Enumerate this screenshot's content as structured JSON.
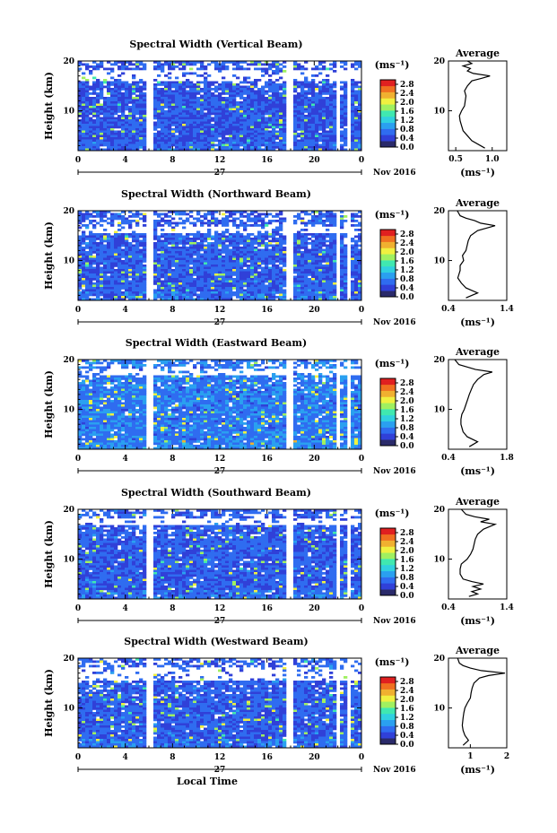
{
  "chart_data": {
    "type": "heatmap",
    "xlabel": "Local Time",
    "x_ticks": [
      "0",
      "4",
      "8",
      "12",
      "16",
      "20",
      "0"
    ],
    "date_day": "27",
    "date_month_year": "Nov 2016",
    "xlim": [
      0,
      24
    ],
    "ylabel": "Height (km)",
    "y_ticks": [
      "10",
      "20"
    ],
    "ylim": [
      2,
      20
    ],
    "colorbar_unit": "(ms⁻¹)",
    "colorbar_ticks": [
      "0.0",
      "0.4",
      "0.8",
      "1.2",
      "1.6",
      "2.0",
      "2.4",
      "2.8"
    ],
    "colorbar_range": [
      0,
      3.0
    ],
    "colors": [
      "#2a2a6a",
      "#3040d8",
      "#2f6cf0",
      "#2aa0f0",
      "#30d0e0",
      "#40e8b0",
      "#a0f060",
      "#f0f040",
      "#f0b030",
      "#f07020",
      "#e02020"
    ],
    "data_gaps_hours": [
      [
        5.8,
        6.3
      ],
      [
        17.6,
        18.2
      ],
      [
        21.9,
        22.2
      ],
      [
        22.7,
        23.1
      ]
    ],
    "average_title": "Average",
    "average_xlabel": "(ms⁻¹)",
    "panels": [
      {
        "title": "Spectral Width (Vertical Beam)",
        "top_gap_km": [
          16,
          18
        ],
        "mean_level": 0.55,
        "average": {
          "x_ticks": [
            "0.5",
            "1.0"
          ],
          "xlim": [
            0.4,
            1.2
          ],
          "height_km": [
            2.5,
            4,
            5,
            6,
            7,
            8,
            9,
            10,
            11,
            12,
            13,
            14,
            15,
            16,
            16.5,
            17,
            17.5,
            18,
            18.5,
            19,
            19.5,
            20
          ],
          "value": [
            0.9,
            0.72,
            0.66,
            0.6,
            0.58,
            0.56,
            0.55,
            0.58,
            0.62,
            0.63,
            0.64,
            0.62,
            0.66,
            0.72,
            0.85,
            0.97,
            0.74,
            0.66,
            0.7,
            0.6,
            0.72,
            0.66
          ]
        }
      },
      {
        "title": "Spectral Width (Northward Beam)",
        "top_gap_km": [
          15.5,
          17
        ],
        "mean_level": 0.6,
        "average": {
          "x_ticks": [
            "0.4",
            "1.4"
          ],
          "xlim": [
            0.4,
            1.4
          ],
          "height_km": [
            2.5,
            3.5,
            4.5,
            5.5,
            6.5,
            8,
            9,
            10,
            11,
            12,
            13,
            14,
            15,
            16,
            16.5,
            17,
            17.5,
            18,
            18.5,
            19,
            20
          ],
          "value": [
            0.7,
            0.9,
            0.7,
            0.62,
            0.56,
            0.6,
            0.6,
            0.66,
            0.64,
            0.7,
            0.72,
            0.74,
            0.78,
            0.9,
            1.05,
            1.2,
            0.95,
            0.85,
            0.7,
            0.6,
            0.55
          ]
        }
      },
      {
        "title": "Spectral Width (Eastward Beam)",
        "top_gap_km": [
          17,
          18
        ],
        "mean_level": 0.75,
        "average": {
          "x_ticks": [
            "0.4",
            "1.8"
          ],
          "xlim": [
            0.4,
            1.8
          ],
          "height_km": [
            2.5,
            3.5,
            4.5,
            5.5,
            7,
            8,
            9,
            10,
            11,
            12,
            13,
            14,
            15,
            16,
            17,
            17.5,
            18,
            18.5,
            19,
            20
          ],
          "value": [
            0.9,
            1.1,
            0.85,
            0.75,
            0.7,
            0.7,
            0.72,
            0.78,
            0.82,
            0.86,
            0.9,
            0.95,
            1.0,
            1.1,
            1.25,
            1.45,
            1.05,
            0.85,
            0.65,
            0.55
          ]
        }
      },
      {
        "title": "Spectral Width (Southward Beam)",
        "top_gap_km": [
          17,
          18
        ],
        "mean_level": 0.6,
        "average": {
          "x_ticks": [
            "0.4",
            "1.4"
          ],
          "xlim": [
            0.4,
            1.4
          ],
          "height_km": [
            2.5,
            3,
            3.5,
            4,
            4.5,
            5,
            5.5,
            6,
            7,
            8,
            9,
            10,
            11,
            12,
            13,
            14,
            15,
            16,
            16.5,
            17,
            17.5,
            18,
            18.5,
            19,
            20
          ],
          "value": [
            0.75,
            0.9,
            0.8,
            0.95,
            0.82,
            1.0,
            0.8,
            0.65,
            0.6,
            0.6,
            0.62,
            0.72,
            0.78,
            0.82,
            0.84,
            0.86,
            0.9,
            1.0,
            1.1,
            1.2,
            0.95,
            1.1,
            0.85,
            0.7,
            0.62
          ]
        }
      },
      {
        "title": "Spectral Width (Westward Beam)",
        "top_gap_km": [
          15.5,
          18
        ],
        "mean_level": 0.6,
        "average": {
          "x_ticks": [
            "1",
            "2"
          ],
          "xlim": [
            0.4,
            2.0
          ],
          "height_km": [
            2.5,
            3.5,
            4.5,
            5.5,
            6.5,
            8,
            9,
            10,
            11,
            12,
            13,
            14,
            15,
            16,
            16.5,
            17,
            17.5,
            18,
            18.5,
            19,
            20
          ],
          "value": [
            0.8,
            0.95,
            0.85,
            0.8,
            0.78,
            0.8,
            0.82,
            0.85,
            0.92,
            1.0,
            1.02,
            1.05,
            1.1,
            1.25,
            1.5,
            1.95,
            1.3,
            1.0,
            0.8,
            0.7,
            0.65
          ]
        }
      }
    ]
  }
}
